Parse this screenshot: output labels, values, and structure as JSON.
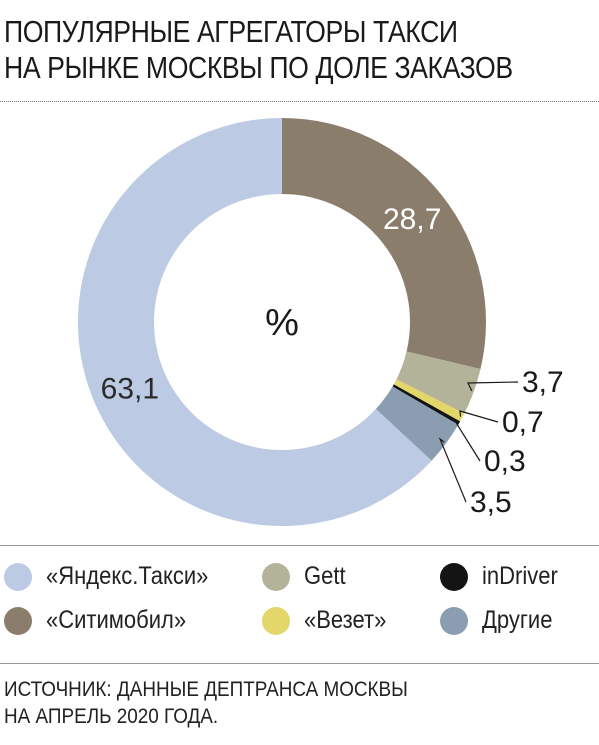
{
  "title": {
    "line1": "ПОПУЛЯРНЫЕ АГРЕГАТОРЫ ТАКСИ",
    "line2": "НА РЫНКЕ МОСКВЫ ПО ДОЛЕ ЗАКАЗОВ"
  },
  "chart_data": {
    "type": "pie",
    "center_label": "%",
    "series": [
      {
        "name": "«Ситимобил»",
        "value": 28.7,
        "label": "28,7",
        "color": "#8b7d6b"
      },
      {
        "name": "Gett",
        "value": 3.7,
        "label": "3,7",
        "color": "#b3b39a"
      },
      {
        "name": "«Везет»",
        "value": 0.7,
        "label": "0,7",
        "color": "#e2d768"
      },
      {
        "name": "inDriver",
        "value": 0.3,
        "label": "0,3",
        "color": "#141414"
      },
      {
        "name": "Другие",
        "value": 3.5,
        "label": "3,5",
        "color": "#8b9db1"
      },
      {
        "name": "«Яндекс.Такси»",
        "value": 63.1,
        "label": "63,1",
        "color": "#bccbe3"
      }
    ]
  },
  "legend": [
    {
      "label": "«Яндекс.Такси»",
      "color": "#bccbe3"
    },
    {
      "label": "Gett",
      "color": "#b3b39a"
    },
    {
      "label": "inDriver",
      "color": "#141414"
    },
    {
      "label": "«Ситимобил»",
      "color": "#8b7d6b"
    },
    {
      "label": "«Везет»",
      "color": "#e2d768"
    },
    {
      "label": "Другие",
      "color": "#8b9db1"
    }
  ],
  "source": {
    "line1": "ИСТОЧНИК: ДАННЫЕ ДЕПТРАНСА МОСКВЫ",
    "line2": "НА АПРЕЛЬ 2020 ГОДА."
  }
}
